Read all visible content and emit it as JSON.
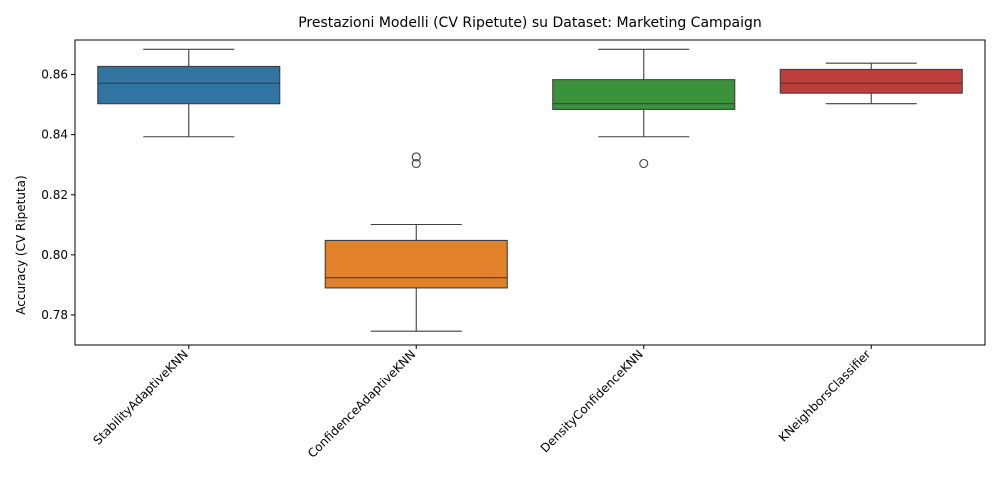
{
  "chart_data": {
    "type": "box",
    "title": "Prestazioni Modelli (CV Ripetute) su Dataset: Marketing Campaign",
    "xlabel": "",
    "ylabel": "Accuracy (CV Ripetuta)",
    "ylim": [
      0.77,
      0.8715
    ],
    "yticks": [
      0.78,
      0.8,
      0.82,
      0.84,
      0.86
    ],
    "ytick_labels": [
      "0.78",
      "0.80",
      "0.82",
      "0.84",
      "0.86"
    ],
    "grid": false,
    "legend": "none",
    "categories": [
      "StabilityAdaptiveKNN",
      "ConfidenceAdaptiveKNN",
      "DensityConfidenceKNN",
      "KNeighborsClassifier"
    ],
    "boxes": [
      {
        "name": "StabilityAdaptiveKNN",
        "color": "#3274a1",
        "whisker_low": 0.8393,
        "q1": 0.8503,
        "median": 0.8571,
        "q3": 0.8627,
        "whisker_high": 0.8684,
        "outliers": []
      },
      {
        "name": "ConfidenceAdaptiveKNN",
        "color": "#e1812c",
        "whisker_low": 0.7746,
        "q1": 0.789,
        "median": 0.7924,
        "q3": 0.8048,
        "whisker_high": 0.8101,
        "outliers": [
          0.8304,
          0.8326
        ]
      },
      {
        "name": "DensityConfidenceKNN",
        "color": "#3a923a",
        "whisker_low": 0.8393,
        "q1": 0.8484,
        "median": 0.8503,
        "q3": 0.8583,
        "whisker_high": 0.8684,
        "outliers": [
          0.8304
        ]
      },
      {
        "name": "KNeighborsClassifier",
        "color": "#c03d3e",
        "whisker_low": 0.8503,
        "q1": 0.8538,
        "median": 0.8571,
        "q3": 0.8617,
        "whisker_high": 0.8638,
        "outliers": []
      }
    ]
  }
}
